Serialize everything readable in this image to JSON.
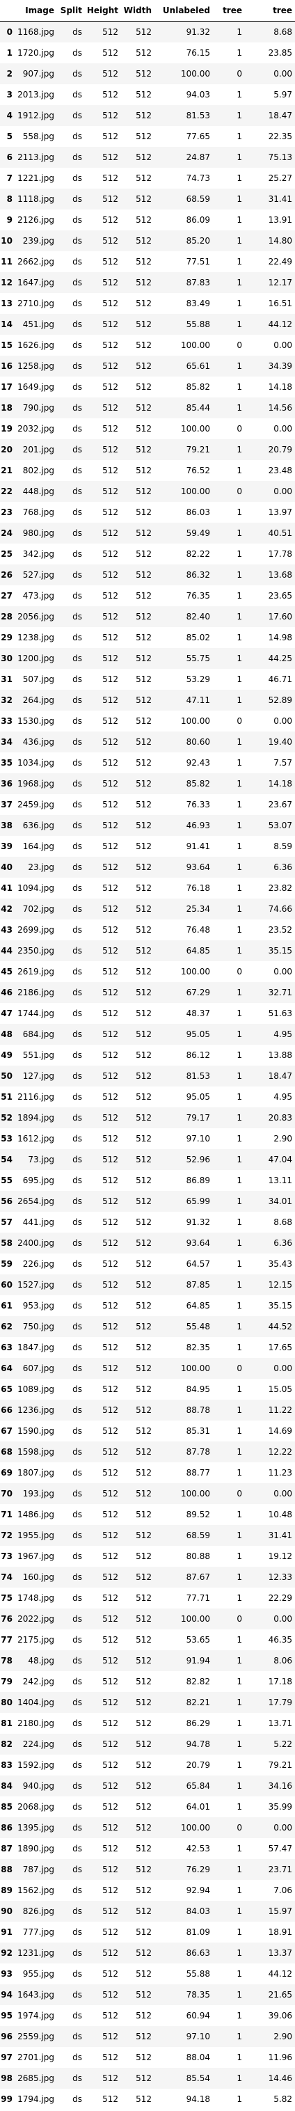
{
  "columns": [
    "",
    "Image",
    "Split",
    "Height",
    "Width",
    "Unlabeled",
    "tree",
    "tree"
  ],
  "rows": [
    [
      "0",
      "1168.jpg",
      "ds",
      "512",
      "512",
      "91.32",
      "1",
      "8.68"
    ],
    [
      "1",
      "1720.jpg",
      "ds",
      "512",
      "512",
      "76.15",
      "1",
      "23.85"
    ],
    [
      "2",
      "907.jpg",
      "ds",
      "512",
      "512",
      "100.00",
      "0",
      "0.00"
    ],
    [
      "3",
      "2013.jpg",
      "ds",
      "512",
      "512",
      "94.03",
      "1",
      "5.97"
    ],
    [
      "4",
      "1912.jpg",
      "ds",
      "512",
      "512",
      "81.53",
      "1",
      "18.47"
    ],
    [
      "5",
      "558.jpg",
      "ds",
      "512",
      "512",
      "77.65",
      "1",
      "22.35"
    ],
    [
      "6",
      "2113.jpg",
      "ds",
      "512",
      "512",
      "24.87",
      "1",
      "75.13"
    ],
    [
      "7",
      "1221.jpg",
      "ds",
      "512",
      "512",
      "74.73",
      "1",
      "25.27"
    ],
    [
      "8",
      "1118.jpg",
      "ds",
      "512",
      "512",
      "68.59",
      "1",
      "31.41"
    ],
    [
      "9",
      "2126.jpg",
      "ds",
      "512",
      "512",
      "86.09",
      "1",
      "13.91"
    ],
    [
      "10",
      "239.jpg",
      "ds",
      "512",
      "512",
      "85.20",
      "1",
      "14.80"
    ],
    [
      "11",
      "2662.jpg",
      "ds",
      "512",
      "512",
      "77.51",
      "1",
      "22.49"
    ],
    [
      "12",
      "1647.jpg",
      "ds",
      "512",
      "512",
      "87.83",
      "1",
      "12.17"
    ],
    [
      "13",
      "2710.jpg",
      "ds",
      "512",
      "512",
      "83.49",
      "1",
      "16.51"
    ],
    [
      "14",
      "451.jpg",
      "ds",
      "512",
      "512",
      "55.88",
      "1",
      "44.12"
    ],
    [
      "15",
      "1626.jpg",
      "ds",
      "512",
      "512",
      "100.00",
      "0",
      "0.00"
    ],
    [
      "16",
      "1258.jpg",
      "ds",
      "512",
      "512",
      "65.61",
      "1",
      "34.39"
    ],
    [
      "17",
      "1649.jpg",
      "ds",
      "512",
      "512",
      "85.82",
      "1",
      "14.18"
    ],
    [
      "18",
      "790.jpg",
      "ds",
      "512",
      "512",
      "85.44",
      "1",
      "14.56"
    ],
    [
      "19",
      "2032.jpg",
      "ds",
      "512",
      "512",
      "100.00",
      "0",
      "0.00"
    ],
    [
      "20",
      "201.jpg",
      "ds",
      "512",
      "512",
      "79.21",
      "1",
      "20.79"
    ],
    [
      "21",
      "802.jpg",
      "ds",
      "512",
      "512",
      "76.52",
      "1",
      "23.48"
    ],
    [
      "22",
      "448.jpg",
      "ds",
      "512",
      "512",
      "100.00",
      "0",
      "0.00"
    ],
    [
      "23",
      "768.jpg",
      "ds",
      "512",
      "512",
      "86.03",
      "1",
      "13.97"
    ],
    [
      "24",
      "980.jpg",
      "ds",
      "512",
      "512",
      "59.49",
      "1",
      "40.51"
    ],
    [
      "25",
      "342.jpg",
      "ds",
      "512",
      "512",
      "82.22",
      "1",
      "17.78"
    ],
    [
      "26",
      "527.jpg",
      "ds",
      "512",
      "512",
      "86.32",
      "1",
      "13.68"
    ],
    [
      "27",
      "473.jpg",
      "ds",
      "512",
      "512",
      "76.35",
      "1",
      "23.65"
    ],
    [
      "28",
      "2056.jpg",
      "ds",
      "512",
      "512",
      "82.40",
      "1",
      "17.60"
    ],
    [
      "29",
      "1238.jpg",
      "ds",
      "512",
      "512",
      "85.02",
      "1",
      "14.98"
    ],
    [
      "30",
      "1200.jpg",
      "ds",
      "512",
      "512",
      "55.75",
      "1",
      "44.25"
    ],
    [
      "31",
      "507.jpg",
      "ds",
      "512",
      "512",
      "53.29",
      "1",
      "46.71"
    ],
    [
      "32",
      "264.jpg",
      "ds",
      "512",
      "512",
      "47.11",
      "1",
      "52.89"
    ],
    [
      "33",
      "1530.jpg",
      "ds",
      "512",
      "512",
      "100.00",
      "0",
      "0.00"
    ],
    [
      "34",
      "436.jpg",
      "ds",
      "512",
      "512",
      "80.60",
      "1",
      "19.40"
    ],
    [
      "35",
      "1034.jpg",
      "ds",
      "512",
      "512",
      "92.43",
      "1",
      "7.57"
    ],
    [
      "36",
      "1968.jpg",
      "ds",
      "512",
      "512",
      "85.82",
      "1",
      "14.18"
    ],
    [
      "37",
      "2459.jpg",
      "ds",
      "512",
      "512",
      "76.33",
      "1",
      "23.67"
    ],
    [
      "38",
      "636.jpg",
      "ds",
      "512",
      "512",
      "46.93",
      "1",
      "53.07"
    ],
    [
      "39",
      "164.jpg",
      "ds",
      "512",
      "512",
      "91.41",
      "1",
      "8.59"
    ],
    [
      "40",
      "23.jpg",
      "ds",
      "512",
      "512",
      "93.64",
      "1",
      "6.36"
    ],
    [
      "41",
      "1094.jpg",
      "ds",
      "512",
      "512",
      "76.18",
      "1",
      "23.82"
    ],
    [
      "42",
      "702.jpg",
      "ds",
      "512",
      "512",
      "25.34",
      "1",
      "74.66"
    ],
    [
      "43",
      "2699.jpg",
      "ds",
      "512",
      "512",
      "76.48",
      "1",
      "23.52"
    ],
    [
      "44",
      "2350.jpg",
      "ds",
      "512",
      "512",
      "64.85",
      "1",
      "35.15"
    ],
    [
      "45",
      "2619.jpg",
      "ds",
      "512",
      "512",
      "100.00",
      "0",
      "0.00"
    ],
    [
      "46",
      "2186.jpg",
      "ds",
      "512",
      "512",
      "67.29",
      "1",
      "32.71"
    ],
    [
      "47",
      "1744.jpg",
      "ds",
      "512",
      "512",
      "48.37",
      "1",
      "51.63"
    ],
    [
      "48",
      "684.jpg",
      "ds",
      "512",
      "512",
      "95.05",
      "1",
      "4.95"
    ],
    [
      "49",
      "551.jpg",
      "ds",
      "512",
      "512",
      "86.12",
      "1",
      "13.88"
    ],
    [
      "50",
      "127.jpg",
      "ds",
      "512",
      "512",
      "81.53",
      "1",
      "18.47"
    ],
    [
      "51",
      "2116.jpg",
      "ds",
      "512",
      "512",
      "95.05",
      "1",
      "4.95"
    ],
    [
      "52",
      "1894.jpg",
      "ds",
      "512",
      "512",
      "79.17",
      "1",
      "20.83"
    ],
    [
      "53",
      "1612.jpg",
      "ds",
      "512",
      "512",
      "97.10",
      "1",
      "2.90"
    ],
    [
      "54",
      "73.jpg",
      "ds",
      "512",
      "512",
      "52.96",
      "1",
      "47.04"
    ],
    [
      "55",
      "695.jpg",
      "ds",
      "512",
      "512",
      "86.89",
      "1",
      "13.11"
    ],
    [
      "56",
      "2654.jpg",
      "ds",
      "512",
      "512",
      "65.99",
      "1",
      "34.01"
    ],
    [
      "57",
      "441.jpg",
      "ds",
      "512",
      "512",
      "91.32",
      "1",
      "8.68"
    ],
    [
      "58",
      "2400.jpg",
      "ds",
      "512",
      "512",
      "93.64",
      "1",
      "6.36"
    ],
    [
      "59",
      "226.jpg",
      "ds",
      "512",
      "512",
      "64.57",
      "1",
      "35.43"
    ],
    [
      "60",
      "1527.jpg",
      "ds",
      "512",
      "512",
      "87.85",
      "1",
      "12.15"
    ],
    [
      "61",
      "953.jpg",
      "ds",
      "512",
      "512",
      "64.85",
      "1",
      "35.15"
    ],
    [
      "62",
      "750.jpg",
      "ds",
      "512",
      "512",
      "55.48",
      "1",
      "44.52"
    ],
    [
      "63",
      "1847.jpg",
      "ds",
      "512",
      "512",
      "82.35",
      "1",
      "17.65"
    ],
    [
      "64",
      "607.jpg",
      "ds",
      "512",
      "512",
      "100.00",
      "0",
      "0.00"
    ],
    [
      "65",
      "1089.jpg",
      "ds",
      "512",
      "512",
      "84.95",
      "1",
      "15.05"
    ],
    [
      "66",
      "1236.jpg",
      "ds",
      "512",
      "512",
      "88.78",
      "1",
      "11.22"
    ],
    [
      "67",
      "1590.jpg",
      "ds",
      "512",
      "512",
      "85.31",
      "1",
      "14.69"
    ],
    [
      "68",
      "1598.jpg",
      "ds",
      "512",
      "512",
      "87.78",
      "1",
      "12.22"
    ],
    [
      "69",
      "1807.jpg",
      "ds",
      "512",
      "512",
      "88.77",
      "1",
      "11.23"
    ],
    [
      "70",
      "193.jpg",
      "ds",
      "512",
      "512",
      "100.00",
      "0",
      "0.00"
    ],
    [
      "71",
      "1486.jpg",
      "ds",
      "512",
      "512",
      "89.52",
      "1",
      "10.48"
    ],
    [
      "72",
      "1955.jpg",
      "ds",
      "512",
      "512",
      "68.59",
      "1",
      "31.41"
    ],
    [
      "73",
      "1967.jpg",
      "ds",
      "512",
      "512",
      "80.88",
      "1",
      "19.12"
    ],
    [
      "74",
      "160.jpg",
      "ds",
      "512",
      "512",
      "87.67",
      "1",
      "12.33"
    ],
    [
      "75",
      "1748.jpg",
      "ds",
      "512",
      "512",
      "77.71",
      "1",
      "22.29"
    ],
    [
      "76",
      "2022.jpg",
      "ds",
      "512",
      "512",
      "100.00",
      "0",
      "0.00"
    ],
    [
      "77",
      "2175.jpg",
      "ds",
      "512",
      "512",
      "53.65",
      "1",
      "46.35"
    ],
    [
      "78",
      "48.jpg",
      "ds",
      "512",
      "512",
      "91.94",
      "1",
      "8.06"
    ],
    [
      "79",
      "242.jpg",
      "ds",
      "512",
      "512",
      "82.82",
      "1",
      "17.18"
    ],
    [
      "80",
      "1404.jpg",
      "ds",
      "512",
      "512",
      "82.21",
      "1",
      "17.79"
    ],
    [
      "81",
      "2180.jpg",
      "ds",
      "512",
      "512",
      "86.29",
      "1",
      "13.71"
    ],
    [
      "82",
      "224.jpg",
      "ds",
      "512",
      "512",
      "94.78",
      "1",
      "5.22"
    ],
    [
      "83",
      "1592.jpg",
      "ds",
      "512",
      "512",
      "20.79",
      "1",
      "79.21"
    ],
    [
      "84",
      "940.jpg",
      "ds",
      "512",
      "512",
      "65.84",
      "1",
      "34.16"
    ],
    [
      "85",
      "2068.jpg",
      "ds",
      "512",
      "512",
      "64.01",
      "1",
      "35.99"
    ],
    [
      "86",
      "1395.jpg",
      "ds",
      "512",
      "512",
      "100.00",
      "0",
      "0.00"
    ],
    [
      "87",
      "1890.jpg",
      "ds",
      "512",
      "512",
      "42.53",
      "1",
      "57.47"
    ],
    [
      "88",
      "787.jpg",
      "ds",
      "512",
      "512",
      "76.29",
      "1",
      "23.71"
    ],
    [
      "89",
      "1562.jpg",
      "ds",
      "512",
      "512",
      "92.94",
      "1",
      "7.06"
    ],
    [
      "90",
      "826.jpg",
      "ds",
      "512",
      "512",
      "84.03",
      "1",
      "15.97"
    ],
    [
      "91",
      "777.jpg",
      "ds",
      "512",
      "512",
      "81.09",
      "1",
      "18.91"
    ],
    [
      "92",
      "1231.jpg",
      "ds",
      "512",
      "512",
      "86.63",
      "1",
      "13.37"
    ],
    [
      "93",
      "955.jpg",
      "ds",
      "512",
      "512",
      "55.88",
      "1",
      "44.12"
    ],
    [
      "94",
      "1643.jpg",
      "ds",
      "512",
      "512",
      "78.35",
      "1",
      "21.65"
    ],
    [
      "95",
      "1974.jpg",
      "ds",
      "512",
      "512",
      "60.94",
      "1",
      "39.06"
    ],
    [
      "96",
      "2559.jpg",
      "ds",
      "512",
      "512",
      "97.10",
      "1",
      "2.90"
    ],
    [
      "97",
      "2701.jpg",
      "ds",
      "512",
      "512",
      "88.04",
      "1",
      "11.96"
    ],
    [
      "98",
      "2685.jpg",
      "ds",
      "512",
      "512",
      "85.54",
      "1",
      "14.46"
    ],
    [
      "99",
      "1794.jpg",
      "ds",
      "512",
      "512",
      "94.18",
      "1",
      "5.82"
    ]
  ]
}
